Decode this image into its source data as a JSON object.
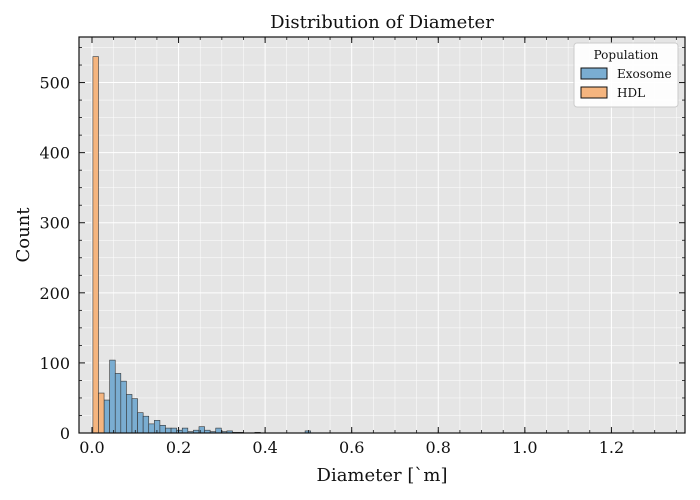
{
  "chart_data": {
    "type": "bar",
    "title": "Distribution of Diameter",
    "xlabel": "Diameter [`m]",
    "ylabel": "Count",
    "xlim": [
      -0.03,
      1.37
    ],
    "ylim": [
      0,
      565
    ],
    "xticks": [
      0.0,
      0.2,
      0.4,
      0.6,
      0.8,
      1.0,
      1.2
    ],
    "xtick_labels": [
      "0.0",
      "0.2",
      "0.4",
      "0.6",
      "0.8",
      "1.0",
      "1.2"
    ],
    "yticks": [
      0,
      100,
      200,
      300,
      400,
      500
    ],
    "ytick_labels": [
      "0",
      "100",
      "200",
      "300",
      "400",
      "500"
    ],
    "grid": true,
    "legend": {
      "title": "Population",
      "position": "top-right"
    },
    "bin_width": 0.0129,
    "series": [
      {
        "name": "Exosome",
        "color": "#7aadd1",
        "bins": [
          [
            0.0279,
            47
          ],
          [
            0.0408,
            104
          ],
          [
            0.0537,
            85
          ],
          [
            0.0666,
            74
          ],
          [
            0.0795,
            55
          ],
          [
            0.0924,
            49
          ],
          [
            0.1053,
            29
          ],
          [
            0.1182,
            24
          ],
          [
            0.1311,
            13
          ],
          [
            0.144,
            18
          ],
          [
            0.1569,
            11
          ],
          [
            0.1698,
            7
          ],
          [
            0.1827,
            7
          ],
          [
            0.1956,
            4
          ],
          [
            0.2085,
            7
          ],
          [
            0.2214,
            2
          ],
          [
            0.2343,
            4
          ],
          [
            0.2472,
            9
          ],
          [
            0.2601,
            4
          ],
          [
            0.273,
            2
          ],
          [
            0.2859,
            7
          ],
          [
            0.2988,
            2
          ],
          [
            0.3117,
            3
          ],
          [
            0.3246,
            1
          ],
          [
            0.3375,
            1
          ],
          [
            0.3762,
            1
          ],
          [
            0.4923,
            3
          ]
        ]
      },
      {
        "name": "HDL",
        "color": "#f5b57f",
        "bins": [
          [
            0.0021,
            537
          ],
          [
            0.015,
            57
          ]
        ]
      }
    ]
  }
}
